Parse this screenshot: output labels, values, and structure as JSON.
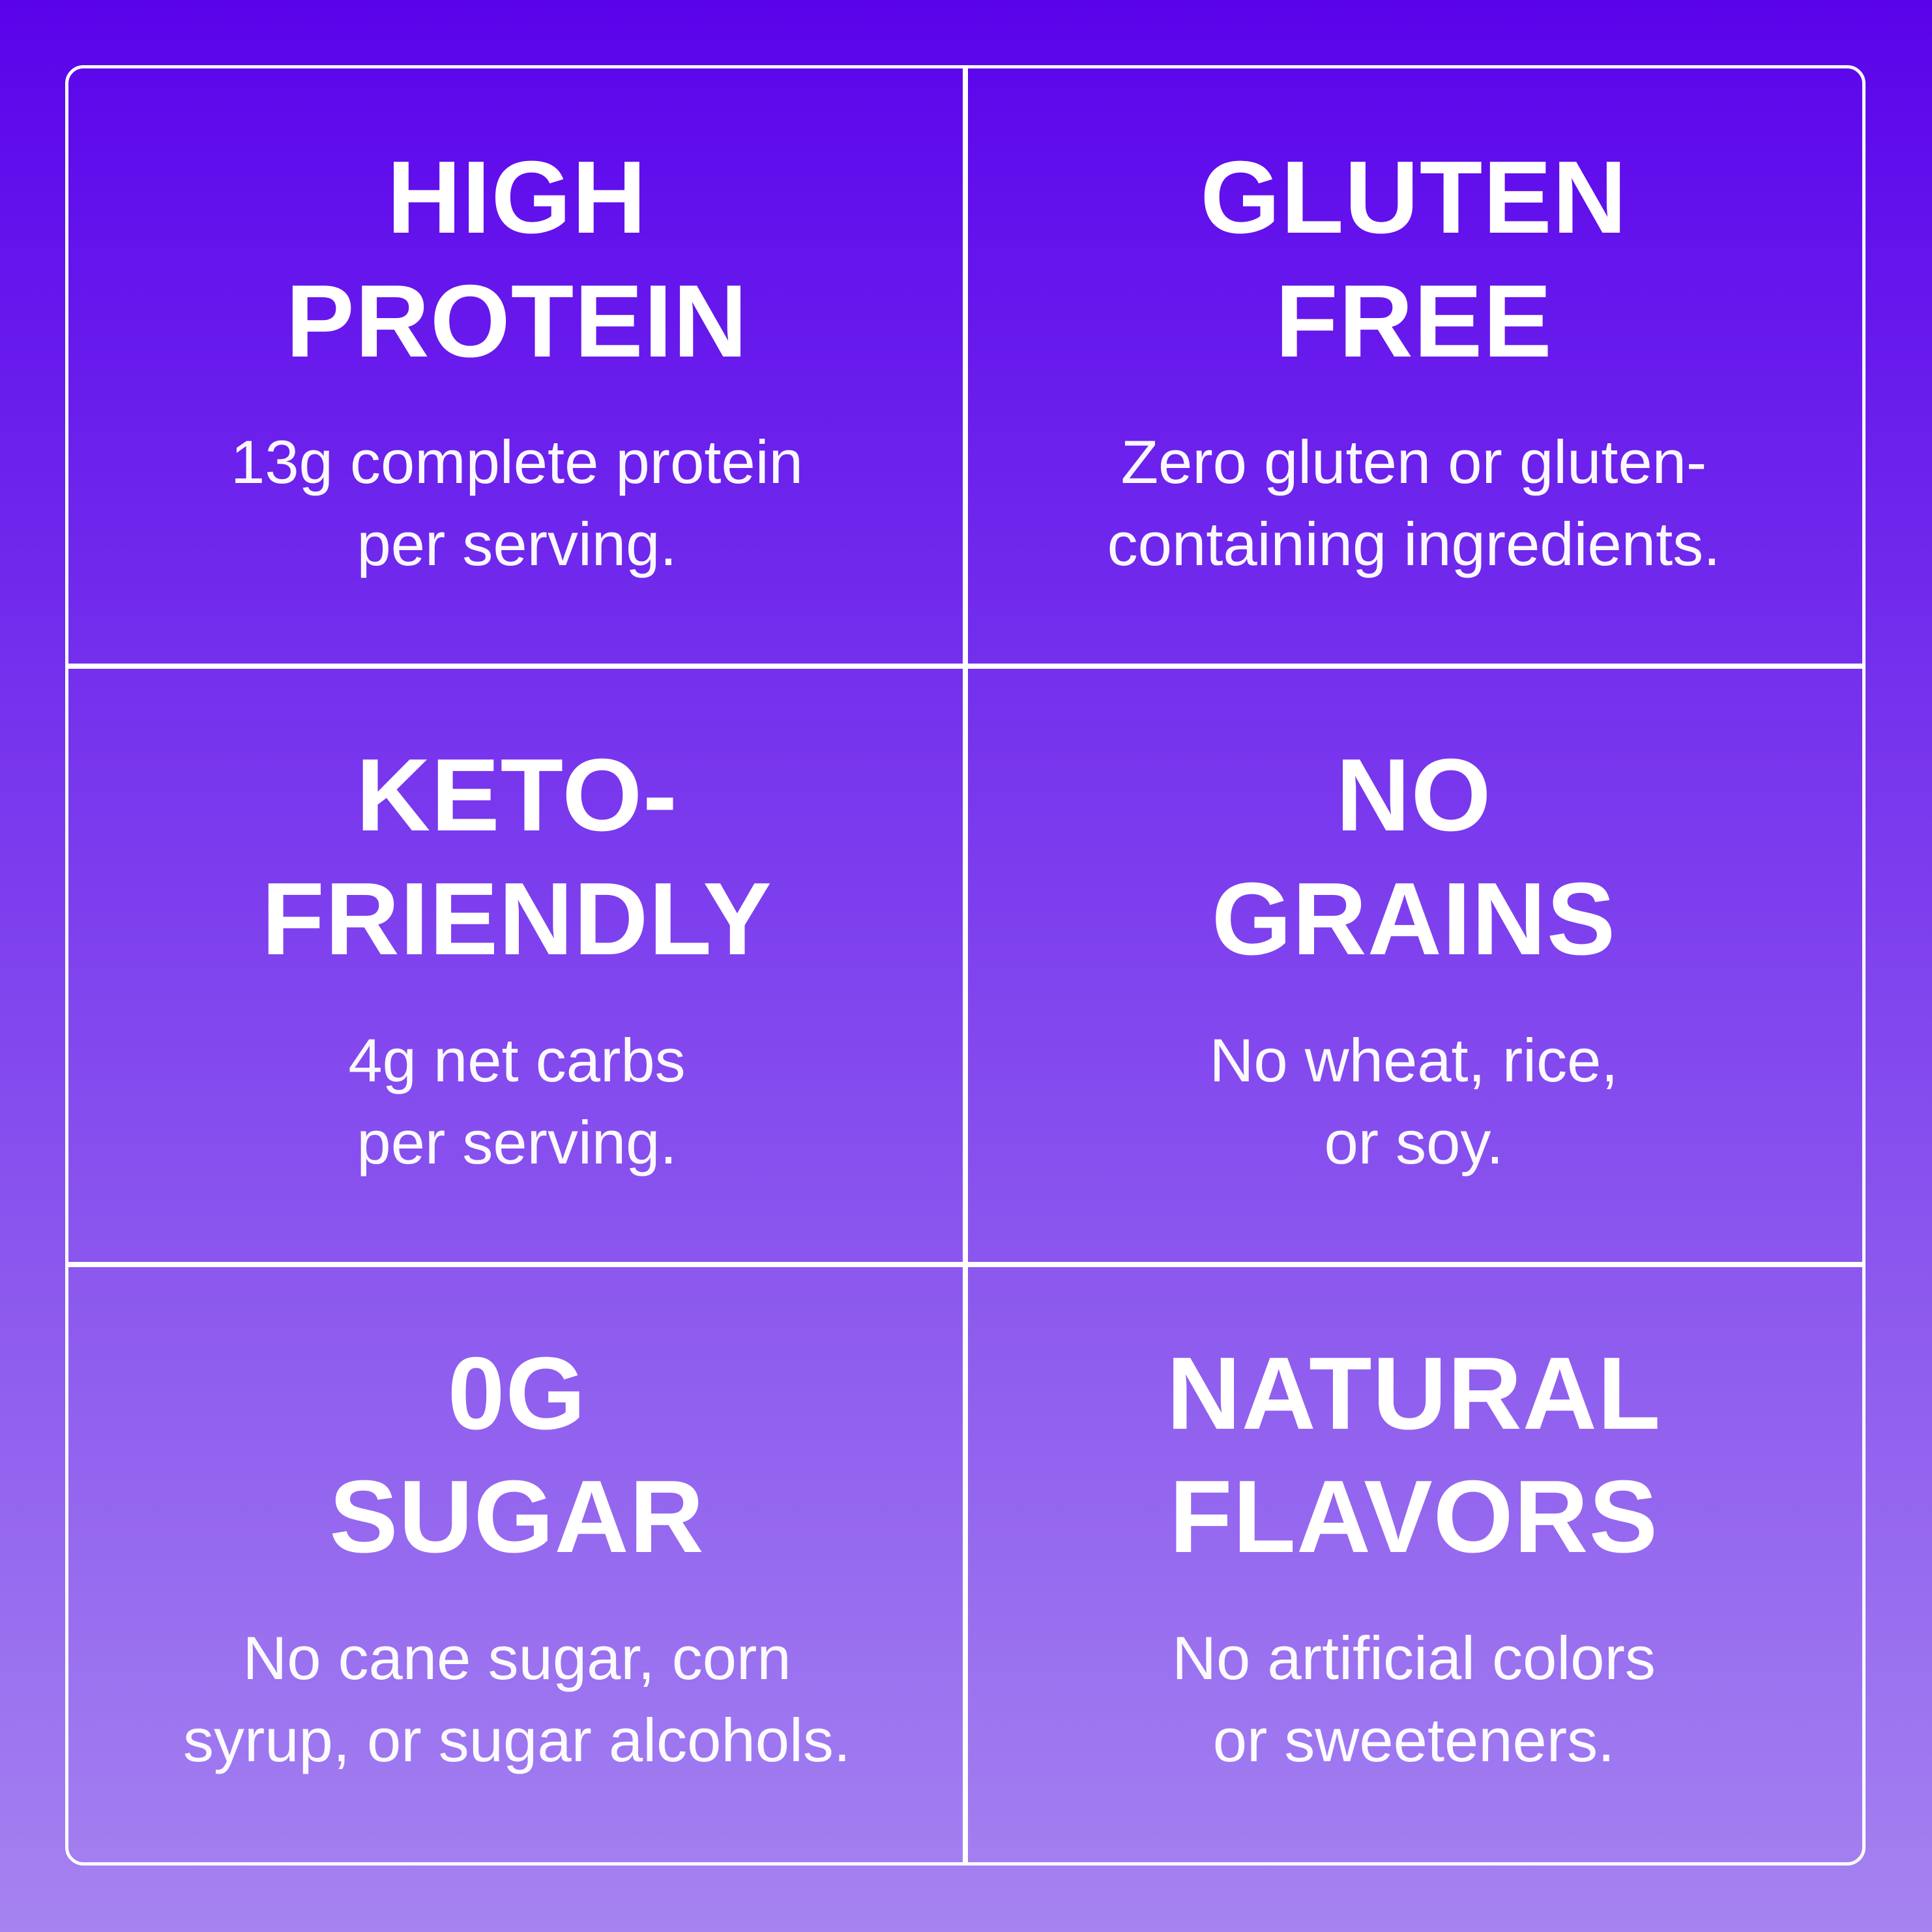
{
  "page": {
    "background_top": "#5A03EB",
    "background_bottom": "#A583F0",
    "line_color": "#FFFFFF",
    "text_color": "#FFFFFF"
  },
  "cells": [
    {
      "title": "HIGH\nPROTEIN",
      "subtitle": "13g complete protein\nper serving."
    },
    {
      "title": "GLUTEN\nFREE",
      "subtitle": "Zero gluten or gluten-\ncontaining ingredients."
    },
    {
      "title": "KETO-\nFRIENDLY",
      "subtitle": "4g net carbs\nper serving."
    },
    {
      "title": "NO\nGRAINS",
      "subtitle": "No wheat, rice,\nor soy."
    },
    {
      "title": "0g\nSUGAR",
      "subtitle": "No cane sugar, corn\nsyrup, or sugar alcohols."
    },
    {
      "title": "NATURAL\nFLAVORS",
      "subtitle": "No artificial colors\nor sweeteners."
    }
  ]
}
